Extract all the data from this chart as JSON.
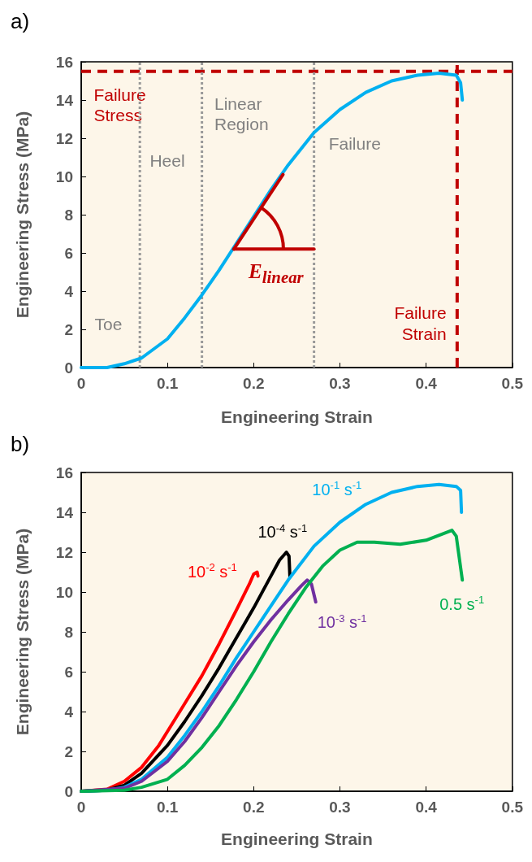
{
  "chart_data": [
    {
      "type": "line",
      "title": "a)",
      "xlabel": "Engineering Strain",
      "ylabel": "Engineering Stress (MPa)",
      "xlim": [
        0,
        0.5
      ],
      "xticks": [
        0,
        0.1,
        0.2,
        0.3,
        0.4,
        0.5
      ],
      "ylim": [
        0,
        16
      ],
      "yticks": [
        0,
        2,
        4,
        6,
        8,
        10,
        12,
        14,
        16
      ],
      "series": [
        {
          "color": "#00b0f0",
          "x": [
            0,
            0.03,
            0.05,
            0.07,
            0.1,
            0.12,
            0.14,
            0.16,
            0.18,
            0.2,
            0.22,
            0.24,
            0.27,
            0.3,
            0.33,
            0.36,
            0.39,
            0.415,
            0.435,
            0.44,
            0.442
          ],
          "values": [
            0,
            0,
            0.2,
            0.5,
            1.5,
            2.6,
            3.8,
            5.1,
            6.5,
            7.9,
            9.3,
            10.6,
            12.3,
            13.5,
            14.4,
            15.0,
            15.3,
            15.4,
            15.3,
            14.9,
            14.0
          ]
        },
        {
          "color": "#c00000",
          "x": [
            0.177,
            0.234
          ],
          "values": [
            6.2,
            10.1
          ]
        },
        {
          "color": "#c00000",
          "x": [
            0.177,
            0.27
          ],
          "values": [
            6.2,
            6.2
          ]
        }
      ],
      "ref_lines": [
        {
          "axis": "y",
          "value": 15.5,
          "label": "Failure\nStress",
          "color": "#c00000",
          "line_style": "dashed"
        },
        {
          "axis": "x",
          "value": 0.436,
          "label": "Failure\nStrain",
          "color": "#c00000",
          "line_style": "dashed"
        },
        {
          "axis": "x",
          "value": 0.068,
          "label": "Heel",
          "color": "#999999",
          "line_style": "dotted"
        },
        {
          "axis": "x",
          "value": 0.14,
          "label": "Linear\nRegion",
          "color": "#999999",
          "line_style": "dotted"
        },
        {
          "axis": "x",
          "value": 0.27,
          "label": "Failure",
          "color": "#999999",
          "line_style": "dotted"
        }
      ],
      "annotations": [
        "Toe",
        {
          "text": "E$_{linear}$",
          "x": 0.177,
          "y": 6.2
        }
      ]
    },
    {
      "type": "line",
      "title": "b)",
      "xlabel": "Engineering Strain",
      "ylabel": "Engineering Stress (MPa)",
      "xlim": [
        0,
        0.5
      ],
      "xticks": [
        0,
        0.1,
        0.2,
        0.3,
        0.4,
        0.5
      ],
      "ylim": [
        0,
        16
      ],
      "yticks": [
        0,
        2,
        4,
        6,
        8,
        10,
        12,
        14,
        16
      ],
      "series": [
        {
          "name": "10$^{-2}$ s$^{-1}$",
          "color": "#ff0000",
          "x": [
            0,
            0.03,
            0.05,
            0.07,
            0.09,
            0.1,
            0.12,
            0.14,
            0.16,
            0.18,
            0.195,
            0.2,
            0.204,
            0.205
          ],
          "values": [
            0,
            0.1,
            0.5,
            1.2,
            2.3,
            3.0,
            4.4,
            5.8,
            7.4,
            9.1,
            10.4,
            10.9,
            11.0,
            10.8
          ]
        },
        {
          "name": "10$^{-4}$ s$^{-1}$",
          "color": "#000000",
          "x": [
            0,
            0.03,
            0.05,
            0.07,
            0.1,
            0.12,
            0.14,
            0.16,
            0.18,
            0.2,
            0.22,
            0.23,
            0.238,
            0.241,
            0.242
          ],
          "values": [
            0,
            0.05,
            0.3,
            0.9,
            2.3,
            3.5,
            4.8,
            6.2,
            7.7,
            9.2,
            10.8,
            11.6,
            12.0,
            11.8,
            10.8
          ]
        },
        {
          "name": "10$^{-1}$ s$^{-1}$",
          "color": "#00b0f0",
          "x": [
            0,
            0.03,
            0.05,
            0.07,
            0.1,
            0.12,
            0.14,
            0.16,
            0.18,
            0.2,
            0.22,
            0.24,
            0.27,
            0.3,
            0.33,
            0.36,
            0.39,
            0.415,
            0.435,
            0.44,
            0.441
          ],
          "values": [
            0,
            0.05,
            0.2,
            0.6,
            1.7,
            2.8,
            4.0,
            5.3,
            6.7,
            8.0,
            9.3,
            10.6,
            12.3,
            13.5,
            14.4,
            15.0,
            15.3,
            15.4,
            15.3,
            15.1,
            14.0
          ]
        },
        {
          "name": "10$^{-3}$ s$^{-1}$",
          "color": "#7030a0",
          "x": [
            0,
            0.05,
            0.07,
            0.1,
            0.12,
            0.14,
            0.16,
            0.18,
            0.2,
            0.22,
            0.24,
            0.255,
            0.262,
            0.267,
            0.272
          ],
          "values": [
            0,
            0.15,
            0.5,
            1.5,
            2.5,
            3.7,
            5.0,
            6.3,
            7.5,
            8.6,
            9.6,
            10.3,
            10.6,
            10.4,
            9.5
          ]
        },
        {
          "name": "0.5 s$^{-1}$",
          "color": "#00b050",
          "x": [
            0,
            0.05,
            0.07,
            0.1,
            0.12,
            0.14,
            0.16,
            0.18,
            0.2,
            0.22,
            0.24,
            0.26,
            0.28,
            0.3,
            0.32,
            0.34,
            0.37,
            0.4,
            0.43,
            0.435,
            0.442
          ],
          "values": [
            0,
            0.05,
            0.2,
            0.6,
            1.3,
            2.2,
            3.3,
            4.6,
            6.0,
            7.5,
            8.9,
            10.2,
            11.3,
            12.1,
            12.5,
            12.5,
            12.4,
            12.6,
            13.1,
            12.8,
            10.6
          ]
        }
      ]
    }
  ]
}
